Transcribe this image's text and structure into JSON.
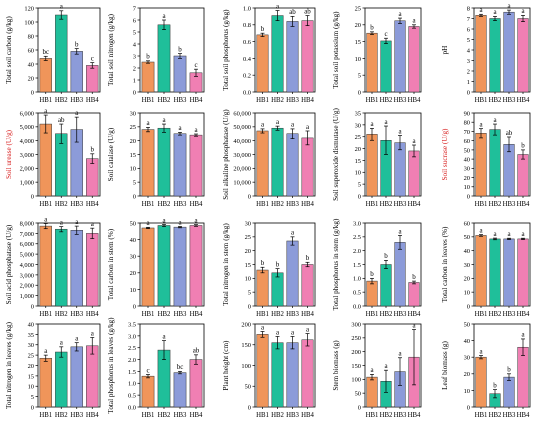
{
  "colors": {
    "HB1": "#f0955a",
    "HB2": "#1fbf9a",
    "HB3": "#8c9bd9",
    "HB4": "#f07fb3",
    "axis": "#000000",
    "red_label": "#d81f1f"
  },
  "chart_data": [
    {
      "type": "bar",
      "categories": [
        "HB1",
        "HB2",
        "HB3",
        "HB4"
      ],
      "ylabel": "Total soil carbon (g/kg)",
      "ylim": [
        0,
        120
      ],
      "ticks": [
        0,
        20,
        40,
        60,
        80,
        100,
        120
      ],
      "values": [
        48,
        110,
        58,
        38
      ],
      "errors": [
        3,
        6,
        4,
        4
      ],
      "letters": [
        "bc",
        "a",
        "b",
        "c"
      ]
    },
    {
      "type": "bar",
      "categories": [
        "HB1",
        "HB2",
        "HB3",
        "HB4"
      ],
      "ylabel": "Total soil nitrogen (g/kg)",
      "ylim": [
        0,
        7
      ],
      "ticks": [
        0,
        1,
        2,
        3,
        4,
        5,
        6,
        7
      ],
      "values": [
        2.5,
        5.6,
        3.0,
        1.6
      ],
      "errors": [
        0.1,
        0.4,
        0.2,
        0.3
      ],
      "letters": [
        "b",
        "a",
        "b",
        "c"
      ]
    },
    {
      "type": "bar",
      "categories": [
        "HB1",
        "HB2",
        "HB3",
        "HB4"
      ],
      "ylabel": "Total soil phosphorus (g/kg)",
      "ylim": [
        0,
        1.0
      ],
      "ticks": [
        0,
        0.2,
        0.4,
        0.6,
        0.8,
        1.0
      ],
      "tick_labels": [
        "0.0",
        "0.2",
        "0.4",
        "0.6",
        "0.8",
        "1.0"
      ],
      "values": [
        0.68,
        0.91,
        0.84,
        0.85
      ],
      "errors": [
        0.02,
        0.06,
        0.06,
        0.06
      ],
      "letters": [
        "b",
        "a",
        "ab",
        "ab"
      ]
    },
    {
      "type": "bar",
      "categories": [
        "HB1",
        "HB2",
        "HB3",
        "HB4"
      ],
      "ylabel": "Total soil potassium (g/kg)",
      "ylim": [
        0,
        25
      ],
      "ticks": [
        0,
        5,
        10,
        15,
        20,
        25
      ],
      "values": [
        17.5,
        15.2,
        21.2,
        19.5
      ],
      "errors": [
        0.4,
        0.8,
        0.8,
        0.5
      ],
      "letters": [
        "b",
        "c",
        "a",
        "a"
      ]
    },
    {
      "type": "bar",
      "categories": [
        "HB1",
        "HB2",
        "HB3",
        "HB4"
      ],
      "ylabel": "pH",
      "ylim": [
        0,
        8
      ],
      "ticks": [
        0,
        1,
        2,
        3,
        4,
        5,
        6,
        7,
        8
      ],
      "values": [
        7.3,
        7.0,
        7.6,
        7.0
      ],
      "errors": [
        0.1,
        0.2,
        0.2,
        0.3
      ],
      "letters": [
        "a",
        "a",
        "a",
        "a"
      ]
    },
    {
      "type": "bar",
      "categories": [
        "HB1",
        "HB2",
        "HB3",
        "HB4"
      ],
      "ylabel": "Soil urease (U/g)",
      "ylim": [
        0,
        6000
      ],
      "ticks": [
        0,
        1000,
        2000,
        3000,
        4000,
        5000,
        6000
      ],
      "tick_labels": [
        "0",
        "1,000",
        "2,000",
        "3,000",
        "4,000",
        "5,000",
        "6,000"
      ],
      "values": [
        5200,
        4500,
        4800,
        2700
      ],
      "errors": [
        650,
        700,
        900,
        350
      ],
      "letters": [
        "a",
        "ab",
        "a",
        "b"
      ],
      "ylabel_color": "red_label"
    },
    {
      "type": "bar",
      "categories": [
        "HB1",
        "HB2",
        "HB3",
        "HB4"
      ],
      "ylabel": "Soil catalase (U/g)",
      "ylim": [
        0,
        30
      ],
      "ticks": [
        0,
        5,
        10,
        15,
        20,
        25,
        30
      ],
      "values": [
        24,
        24.5,
        22.5,
        22
      ],
      "errors": [
        0.8,
        1.5,
        0.5,
        0.4
      ],
      "letters": [
        "a",
        "a",
        "a",
        "a"
      ]
    },
    {
      "type": "bar",
      "categories": [
        "HB1",
        "HB2",
        "HB3",
        "HB4"
      ],
      "ylabel": "Soil alkaline phosphatase (U/g)",
      "ylim": [
        0,
        60000
      ],
      "ticks": [
        0,
        10000,
        20000,
        30000,
        40000,
        50000,
        60000
      ],
      "tick_labels": [
        "0",
        "10,000",
        "20,000",
        "30,000",
        "40,000",
        "50,000",
        "60,000"
      ],
      "values": [
        47000,
        49000,
        45000,
        42000
      ],
      "errors": [
        1500,
        1500,
        3500,
        5000
      ],
      "letters": [
        "a",
        "a",
        "a",
        "a"
      ]
    },
    {
      "type": "bar",
      "categories": [
        "HB1",
        "HB2",
        "HB3",
        "HB4"
      ],
      "ylabel": "Soil superoxide dismutase (U/g)",
      "ylim": [
        0,
        35
      ],
      "ticks": [
        0,
        5,
        10,
        15,
        20,
        25,
        30,
        35
      ],
      "values": [
        26,
        23.5,
        22.5,
        19
      ],
      "errors": [
        2.5,
        6,
        3,
        2.5
      ],
      "letters": [
        "a",
        "a",
        "a",
        "a"
      ]
    },
    {
      "type": "bar",
      "categories": [
        "HB1",
        "HB2",
        "HB3",
        "HB4"
      ],
      "ylabel": "Soil sucrase (U/g)",
      "ylim": [
        0,
        90
      ],
      "ticks": [
        0,
        10,
        20,
        30,
        40,
        50,
        60,
        70,
        80,
        90
      ],
      "values": [
        68,
        72,
        56,
        45
      ],
      "errors": [
        5,
        6,
        8,
        5
      ],
      "letters": [
        "a",
        "a",
        "ab",
        "b"
      ],
      "ylabel_color": "red_label"
    },
    {
      "type": "bar",
      "categories": [
        "HB1",
        "HB2",
        "HB3",
        "HB4"
      ],
      "ylabel": "Soil acid phosphatase (U/g)",
      "ylim": [
        0,
        8000
      ],
      "ticks": [
        0,
        1000,
        2000,
        3000,
        4000,
        5000,
        6000,
        7000,
        8000
      ],
      "tick_labels": [
        "0",
        "1,000",
        "2,000",
        "3,000",
        "4,000",
        "5,000",
        "6,000",
        "7,000",
        "8,000"
      ],
      "values": [
        7700,
        7400,
        7300,
        7000
      ],
      "errors": [
        250,
        250,
        400,
        500
      ],
      "letters": [
        "a",
        "a",
        "a",
        "a"
      ]
    },
    {
      "type": "bar",
      "categories": [
        "HB1",
        "HB2",
        "HB3",
        "HB4"
      ],
      "ylabel": "Total carbon in stem (%)",
      "ylim": [
        0,
        50
      ],
      "ticks": [
        0,
        10,
        20,
        30,
        40,
        50
      ],
      "values": [
        47,
        48.5,
        47.5,
        48.5
      ],
      "errors": [
        0.4,
        0.6,
        0.4,
        0.5
      ],
      "letters": [
        "a",
        "a",
        "a",
        "a"
      ]
    },
    {
      "type": "bar",
      "categories": [
        "HB1",
        "HB2",
        "HB3",
        "HB4"
      ],
      "ylabel": "Total nitrogen in stem (g/kg)",
      "ylim": [
        0,
        30
      ],
      "ticks": [
        0,
        5,
        10,
        15,
        20,
        25,
        30
      ],
      "values": [
        13,
        12,
        23.5,
        15
      ],
      "errors": [
        1,
        1.5,
        1.5,
        0.8
      ],
      "letters": [
        "b",
        "b",
        "a",
        "b"
      ]
    },
    {
      "type": "bar",
      "categories": [
        "HB1",
        "HB2",
        "HB3",
        "HB4"
      ],
      "ylabel": "Total phosphorus in stem (g/kg)",
      "ylim": [
        0,
        3.0
      ],
      "ticks": [
        0,
        0.5,
        1.0,
        1.5,
        2.0,
        2.5,
        3.0
      ],
      "tick_labels": [
        "0.0",
        "0.5",
        "1.0",
        "1.5",
        "2.0",
        "2.5",
        "3.0"
      ],
      "values": [
        0.9,
        1.5,
        2.3,
        0.85
      ],
      "errors": [
        0.1,
        0.15,
        0.25,
        0.05
      ],
      "letters": [
        "b",
        "b",
        "a",
        "b"
      ]
    },
    {
      "type": "bar",
      "categories": [
        "HB1",
        "HB2",
        "HB3",
        "HB4"
      ],
      "ylabel": "Total carbon in leaves (%)",
      "ylim": [
        0,
        60
      ],
      "ticks": [
        0,
        10,
        20,
        30,
        40,
        50,
        60
      ],
      "values": [
        51,
        48.5,
        48.5,
        48.5
      ],
      "errors": [
        0.6,
        0.6,
        0.5,
        0.5
      ],
      "letters": [
        "a",
        "a",
        "a",
        "a"
      ]
    },
    {
      "type": "bar",
      "categories": [
        "HB1",
        "HB2",
        "HB3",
        "HB4"
      ],
      "ylabel": "Total nitrogen in leaves (g/kg)",
      "ylim": [
        0,
        40
      ],
      "ticks": [
        0,
        5,
        10,
        15,
        20,
        25,
        30,
        35,
        40
      ],
      "values": [
        23.5,
        26.5,
        29,
        29.5
      ],
      "errors": [
        1.5,
        2.5,
        2,
        4
      ],
      "letters": [
        "a",
        "a",
        "a",
        "a"
      ]
    },
    {
      "type": "bar",
      "categories": [
        "HB1",
        "HB2",
        "HB3",
        "HB4"
      ],
      "ylabel": "Total phosphorus in leaves (g/kg)",
      "ylim": [
        0,
        3.5
      ],
      "ticks": [
        0,
        0.5,
        1.0,
        1.5,
        2.0,
        2.5,
        3.0,
        3.5
      ],
      "tick_labels": [
        "0.0",
        "0.5",
        "1.0",
        "1.5",
        "2.0",
        "2.5",
        "3.0",
        "3.5"
      ],
      "values": [
        1.3,
        2.4,
        1.45,
        2.0
      ],
      "errors": [
        0.07,
        0.4,
        0.05,
        0.2
      ],
      "letters": [
        "c",
        "a",
        "bc",
        "ab"
      ]
    },
    {
      "type": "bar",
      "categories": [
        "HB1",
        "HB2",
        "HB3",
        "HB4"
      ],
      "ylabel": "Plant height (cm)",
      "ylim": [
        0,
        200
      ],
      "ticks": [
        0,
        50,
        100,
        150,
        200
      ],
      "values": [
        175,
        155,
        155,
        162
      ],
      "errors": [
        7,
        15,
        15,
        15
      ],
      "letters": [
        "a",
        "a",
        "a",
        "a"
      ]
    },
    {
      "type": "bar",
      "categories": [
        "HB1",
        "HB2",
        "HB3",
        "HB4"
      ],
      "ylabel": "Stem biomass (g)",
      "ylim": [
        0,
        300
      ],
      "ticks": [
        0,
        50,
        100,
        150,
        200,
        250,
        300
      ],
      "values": [
        108,
        93,
        128,
        180
      ],
      "errors": [
        10,
        40,
        50,
        100
      ],
      "letters": [
        "a",
        "a",
        "a",
        "a"
      ]
    },
    {
      "type": "bar",
      "categories": [
        "HB1",
        "HB2",
        "HB3",
        "HB4"
      ],
      "ylabel": "Leaf biomass (g)",
      "ylim": [
        0,
        50
      ],
      "ticks": [
        0,
        10,
        20,
        30,
        40,
        50
      ],
      "values": [
        30,
        8,
        18,
        36
      ],
      "errors": [
        1,
        2.5,
        2,
        5
      ],
      "letters": [
        "a",
        "b",
        "b",
        "a"
      ]
    }
  ]
}
